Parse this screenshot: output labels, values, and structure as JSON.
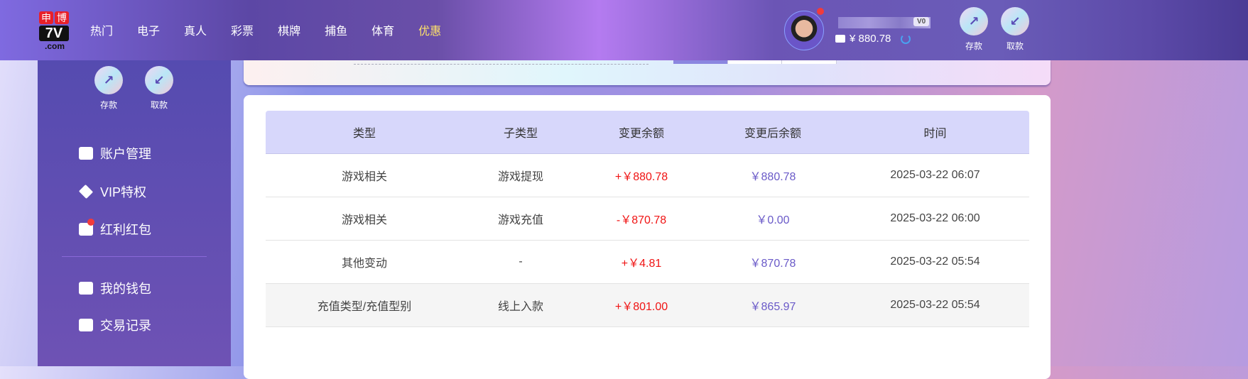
{
  "header": {
    "logo_top": [
      "申",
      "博"
    ],
    "logo_mid": "7V",
    "logo_bottom": ".com",
    "nav": [
      {
        "label": "热门"
      },
      {
        "label": "电子"
      },
      {
        "label": "真人"
      },
      {
        "label": "彩票"
      },
      {
        "label": "棋牌"
      },
      {
        "label": "捕鱼"
      },
      {
        "label": "体育"
      },
      {
        "label": "优惠",
        "active": true
      }
    ],
    "vip_level": "V0",
    "balance": "¥ 880.78",
    "deposit": "存款",
    "withdraw": "取款"
  },
  "sidebar": {
    "deposit": "存款",
    "withdraw": "取款",
    "items": [
      {
        "label": "账户管理",
        "icon": "card-icon"
      },
      {
        "label": "VIP特权",
        "icon": "diamond-icon"
      },
      {
        "label": "红利红包",
        "icon": "envelope-icon"
      },
      {
        "label": "我的钱包",
        "icon": "wallet-icon"
      },
      {
        "label": "交易记录",
        "icon": "document-icon"
      }
    ]
  },
  "table": {
    "headers": [
      "类型",
      "子类型",
      "变更余额",
      "变更后余额",
      "时间"
    ],
    "rows": [
      [
        "游戏相关",
        "游戏提现",
        "+￥880.78",
        "￥880.78",
        "2025-03-22 06:07"
      ],
      [
        "游戏相关",
        "游戏充值",
        "-￥870.78",
        "￥0.00",
        "2025-03-22 06:00"
      ],
      [
        "其他变动",
        "-",
        "+￥4.81",
        "￥870.78",
        "2025-03-22 05:54"
      ],
      [
        "充值类型/充值型别",
        "线上入款",
        "+￥801.00",
        "￥865.97",
        "2025-03-22 05:54"
      ]
    ]
  },
  "colors": {
    "change": "#f01414",
    "balance": "#6a5ac8",
    "header_bg": "#d7d7fb",
    "active_nav": "#ffe36a"
  }
}
